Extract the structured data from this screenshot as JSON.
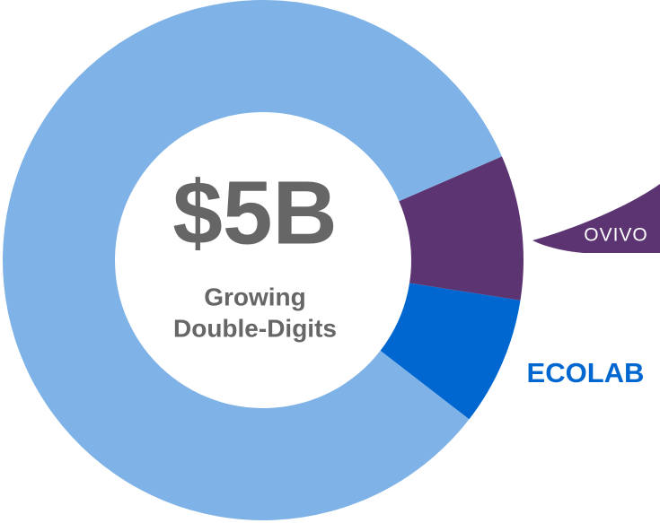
{
  "chart_data": {
    "type": "donut",
    "center_label": "$5B",
    "subtitle_lines": [
      "Growing",
      "Double-Digits"
    ],
    "categories": [
      "OVIVO",
      "ECOLAB",
      null
    ],
    "values": [
      9,
      8,
      83
    ],
    "colors": [
      "#5c3472",
      "#0067d1",
      "#7fb2e6"
    ]
  }
}
